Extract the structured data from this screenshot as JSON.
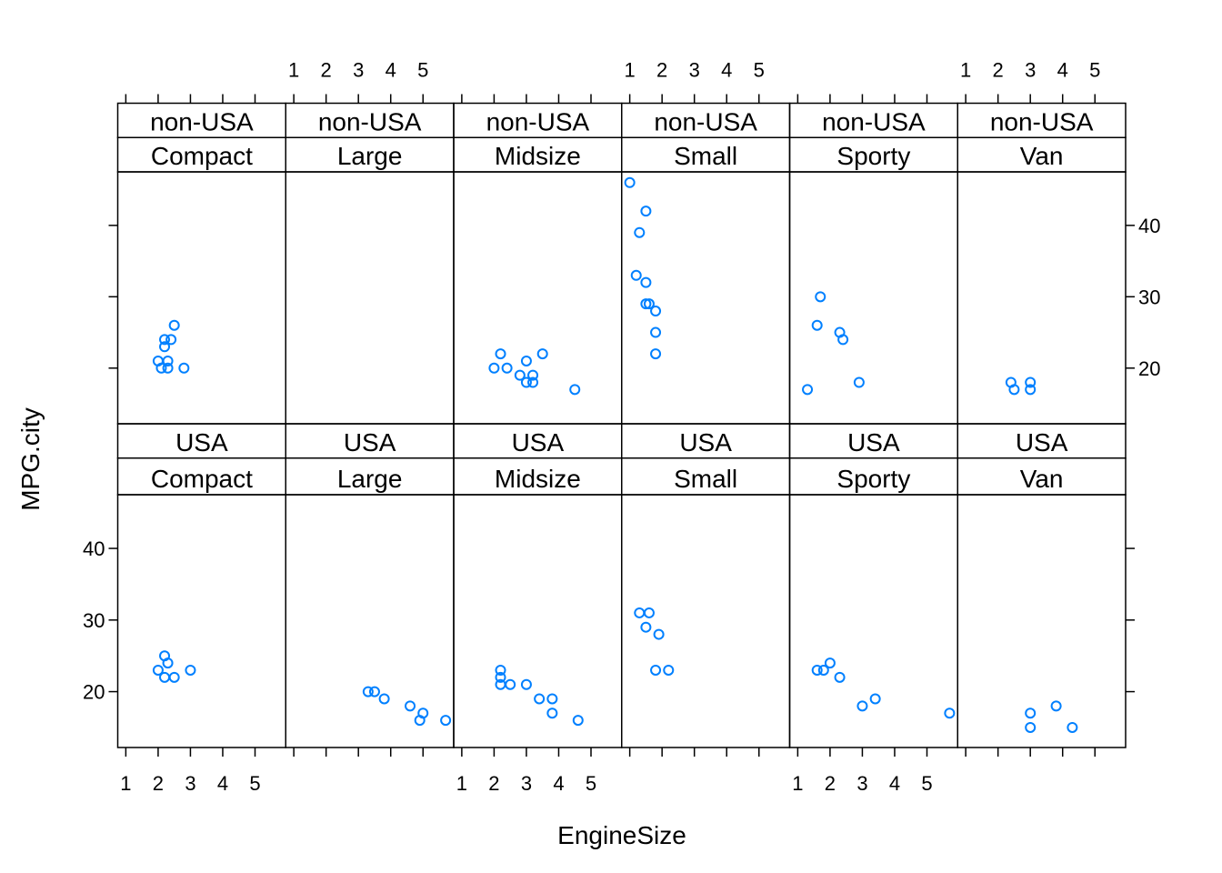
{
  "chart_data": {
    "type": "scatter",
    "layout": "lattice-conditioned-panels",
    "xlabel": "EngineSize",
    "ylabel": "MPG.city",
    "xlim": [
      0.75,
      5.95
    ],
    "ylim": [
      12.2,
      47.5
    ],
    "x_ticks": [
      1,
      2,
      3,
      4,
      5
    ],
    "y_ticks": [
      20,
      30,
      40
    ],
    "point_color": "#0080ff",
    "strip_colors": {
      "origin": "#ccffcc",
      "type": "#ffe5cc"
    },
    "grid": false,
    "legend": "none",
    "rows": [
      "non-USA",
      "USA"
    ],
    "columns": [
      "Compact",
      "Large",
      "Midsize",
      "Small",
      "Sporty",
      "Van"
    ],
    "panels": [
      {
        "origin": "non-USA",
        "type": "Compact",
        "points": [
          [
            2.0,
            21
          ],
          [
            2.1,
            20
          ],
          [
            2.2,
            23
          ],
          [
            2.2,
            24
          ],
          [
            2.3,
            20
          ],
          [
            2.3,
            21
          ],
          [
            2.4,
            24
          ],
          [
            2.5,
            26
          ],
          [
            2.8,
            20
          ]
        ]
      },
      {
        "origin": "non-USA",
        "type": "Large",
        "points": []
      },
      {
        "origin": "non-USA",
        "type": "Midsize",
        "points": [
          [
            2.0,
            20
          ],
          [
            2.2,
            22
          ],
          [
            2.4,
            20
          ],
          [
            2.8,
            19
          ],
          [
            3.0,
            18
          ],
          [
            3.0,
            21
          ],
          [
            3.2,
            18
          ],
          [
            3.2,
            19
          ],
          [
            3.5,
            22
          ],
          [
            4.5,
            17
          ]
        ]
      },
      {
        "origin": "non-USA",
        "type": "Small",
        "points": [
          [
            1.0,
            46
          ],
          [
            1.2,
            33
          ],
          [
            1.3,
            39
          ],
          [
            1.5,
            29
          ],
          [
            1.5,
            32
          ],
          [
            1.5,
            42
          ],
          [
            1.6,
            29
          ],
          [
            1.8,
            22
          ],
          [
            1.8,
            25
          ],
          [
            1.8,
            28
          ]
        ]
      },
      {
        "origin": "non-USA",
        "type": "Sporty",
        "points": [
          [
            1.3,
            17
          ],
          [
            1.6,
            26
          ],
          [
            1.7,
            30
          ],
          [
            2.3,
            25
          ],
          [
            2.4,
            24
          ],
          [
            2.9,
            18
          ]
        ]
      },
      {
        "origin": "non-USA",
        "type": "Van",
        "points": [
          [
            2.4,
            18
          ],
          [
            2.5,
            17
          ],
          [
            3.0,
            17
          ],
          [
            3.0,
            18
          ]
        ]
      },
      {
        "origin": "USA",
        "type": "Compact",
        "points": [
          [
            2.0,
            23
          ],
          [
            2.2,
            25
          ],
          [
            2.2,
            22
          ],
          [
            2.3,
            24
          ],
          [
            2.5,
            22
          ],
          [
            3.0,
            23
          ]
        ]
      },
      {
        "origin": "USA",
        "type": "Large",
        "points": [
          [
            3.3,
            20
          ],
          [
            3.5,
            20
          ],
          [
            3.8,
            19
          ],
          [
            4.6,
            18
          ],
          [
            4.9,
            16
          ],
          [
            5.0,
            17
          ],
          [
            5.7,
            16
          ]
        ]
      },
      {
        "origin": "USA",
        "type": "Midsize",
        "points": [
          [
            2.2,
            21
          ],
          [
            2.2,
            22
          ],
          [
            2.2,
            23
          ],
          [
            2.5,
            21
          ],
          [
            3.0,
            21
          ],
          [
            3.4,
            19
          ],
          [
            3.8,
            17
          ],
          [
            3.8,
            19
          ],
          [
            4.6,
            16
          ]
        ]
      },
      {
        "origin": "USA",
        "type": "Small",
        "points": [
          [
            1.3,
            31
          ],
          [
            1.5,
            29
          ],
          [
            1.6,
            31
          ],
          [
            1.8,
            23
          ],
          [
            1.9,
            28
          ],
          [
            2.2,
            23
          ]
        ]
      },
      {
        "origin": "USA",
        "type": "Sporty",
        "points": [
          [
            1.6,
            23
          ],
          [
            1.8,
            23
          ],
          [
            2.0,
            24
          ],
          [
            2.3,
            22
          ],
          [
            3.0,
            18
          ],
          [
            3.4,
            19
          ],
          [
            5.7,
            17
          ]
        ]
      },
      {
        "origin": "USA",
        "type": "Van",
        "points": [
          [
            3.0,
            15
          ],
          [
            3.0,
            17
          ],
          [
            3.8,
            18
          ],
          [
            4.3,
            15
          ]
        ]
      }
    ]
  }
}
